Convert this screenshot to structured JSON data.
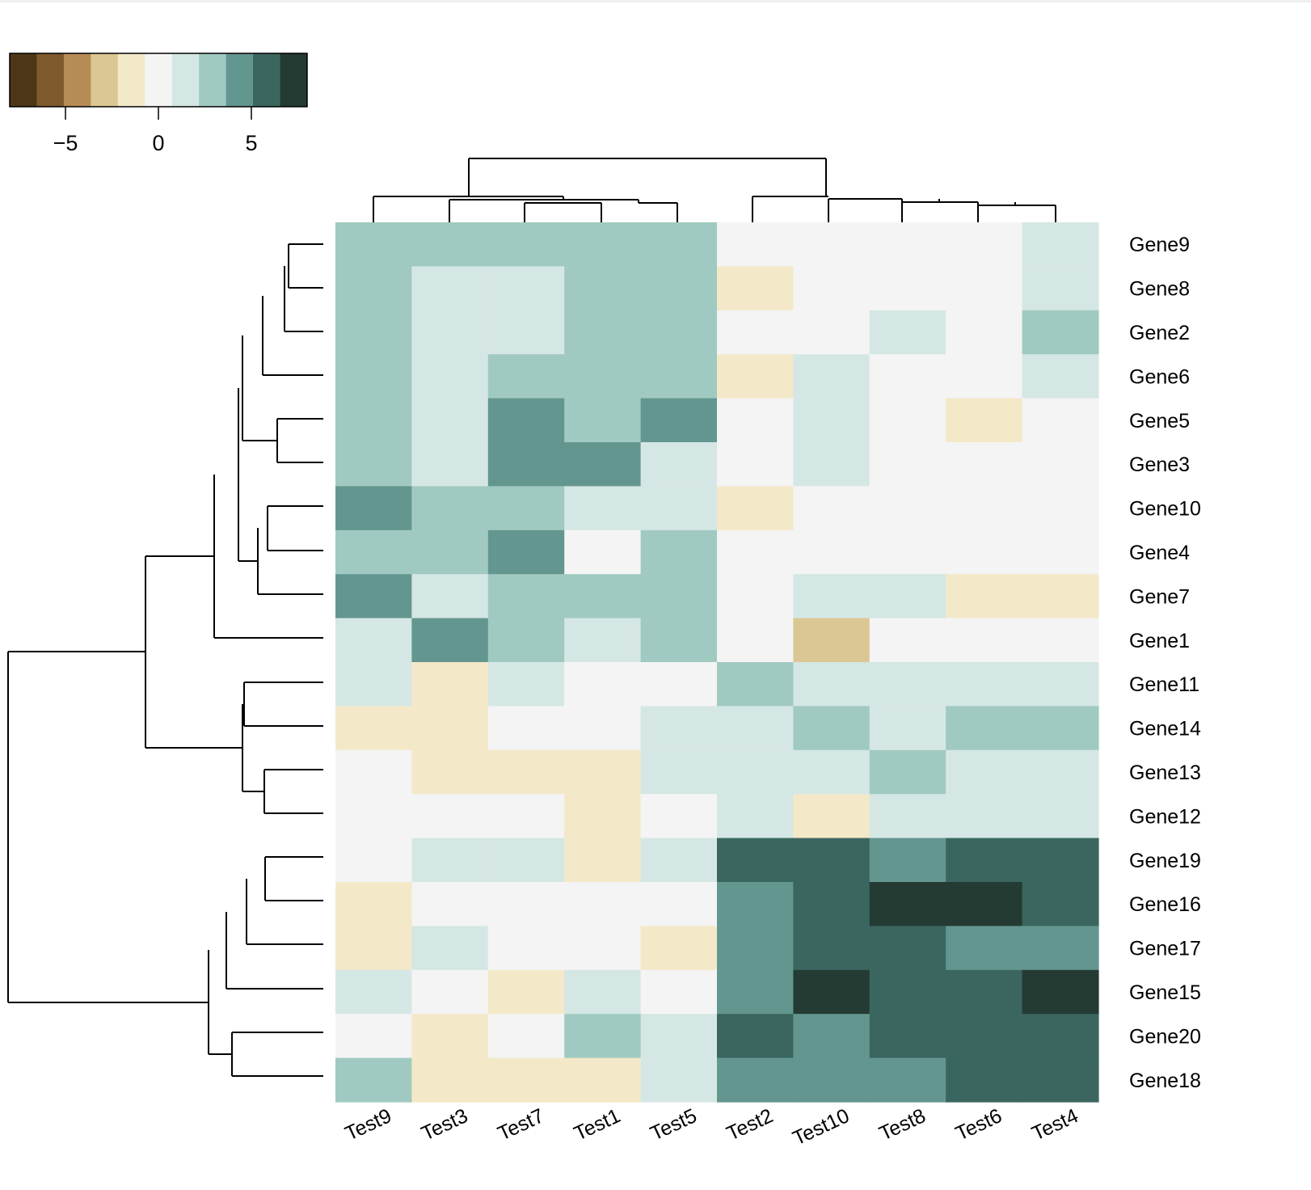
{
  "chart_data": {
    "type": "heatmap",
    "rows": [
      "Gene9",
      "Gene8",
      "Gene2",
      "Gene6",
      "Gene5",
      "Gene3",
      "Gene10",
      "Gene4",
      "Gene7",
      "Gene1",
      "Gene11",
      "Gene14",
      "Gene13",
      "Gene12",
      "Gene19",
      "Gene16",
      "Gene17",
      "Gene15",
      "Gene20",
      "Gene18"
    ],
    "columns": [
      "Test9",
      "Test3",
      "Test7",
      "Test1",
      "Test5",
      "Test2",
      "Test10",
      "Test8",
      "Test6",
      "Test4"
    ],
    "values": [
      [
        3,
        3,
        3,
        3,
        3,
        0,
        0,
        0,
        0,
        2
      ],
      [
        3,
        2,
        2,
        3,
        3,
        -1,
        0,
        0,
        0,
        2
      ],
      [
        3,
        2,
        2,
        3,
        3,
        0,
        0,
        2,
        0,
        3
      ],
      [
        3,
        2,
        3,
        3,
        3,
        -1,
        2,
        0,
        0,
        2
      ],
      [
        3,
        2,
        4,
        3,
        4,
        0,
        2,
        0,
        -1,
        0
      ],
      [
        3,
        2,
        4,
        4,
        2,
        0,
        2,
        0,
        0,
        0
      ],
      [
        4,
        3,
        3,
        2,
        2,
        -1,
        0,
        0,
        0,
        0
      ],
      [
        3,
        3,
        4,
        0,
        3,
        0,
        0,
        0,
        0,
        0
      ],
      [
        4,
        2,
        3,
        3,
        3,
        0,
        2,
        2,
        -1,
        -1
      ],
      [
        2,
        4,
        3,
        2,
        3,
        0,
        -3,
        0,
        0,
        0
      ],
      [
        2,
        -1,
        2,
        0,
        0,
        3,
        2,
        2,
        2,
        2
      ],
      [
        -1,
        -1,
        0,
        0,
        2,
        2,
        3,
        2,
        3,
        3
      ],
      [
        0,
        -1,
        -1,
        -1,
        2,
        2,
        2,
        3,
        2,
        2
      ],
      [
        0,
        0,
        0,
        -1,
        0,
        2,
        -1,
        2,
        2,
        2
      ],
      [
        0,
        2,
        2,
        -1,
        2,
        6,
        6,
        4,
        6,
        6
      ],
      [
        -1,
        0,
        0,
        0,
        0,
        4,
        6,
        7,
        7,
        6
      ],
      [
        -1,
        2,
        0,
        0,
        -1,
        4,
        6,
        6,
        4,
        4
      ],
      [
        2,
        0,
        -1,
        2,
        0,
        4,
        7,
        6,
        6,
        7
      ],
      [
        0,
        -1,
        0,
        3,
        2,
        6,
        4,
        6,
        6,
        6
      ],
      [
        3,
        -1,
        -1,
        -1,
        2,
        4,
        4,
        4,
        6,
        6
      ]
    ],
    "colorbar": {
      "ticks": [
        -5,
        0,
        5
      ],
      "tick_labels": [
        "−5",
        "0",
        "5"
      ],
      "range": [
        -8,
        8
      ],
      "colors": [
        "#4e3718",
        "#7f5a2c",
        "#b68c55",
        "#dbc793",
        "#f3e8c8",
        "#f4f4f4",
        "#d5e7e4",
        "#a0cac1",
        "#649690",
        "#3b6660",
        "#233b33"
      ]
    },
    "grid": false,
    "legend_position": "top-left"
  }
}
